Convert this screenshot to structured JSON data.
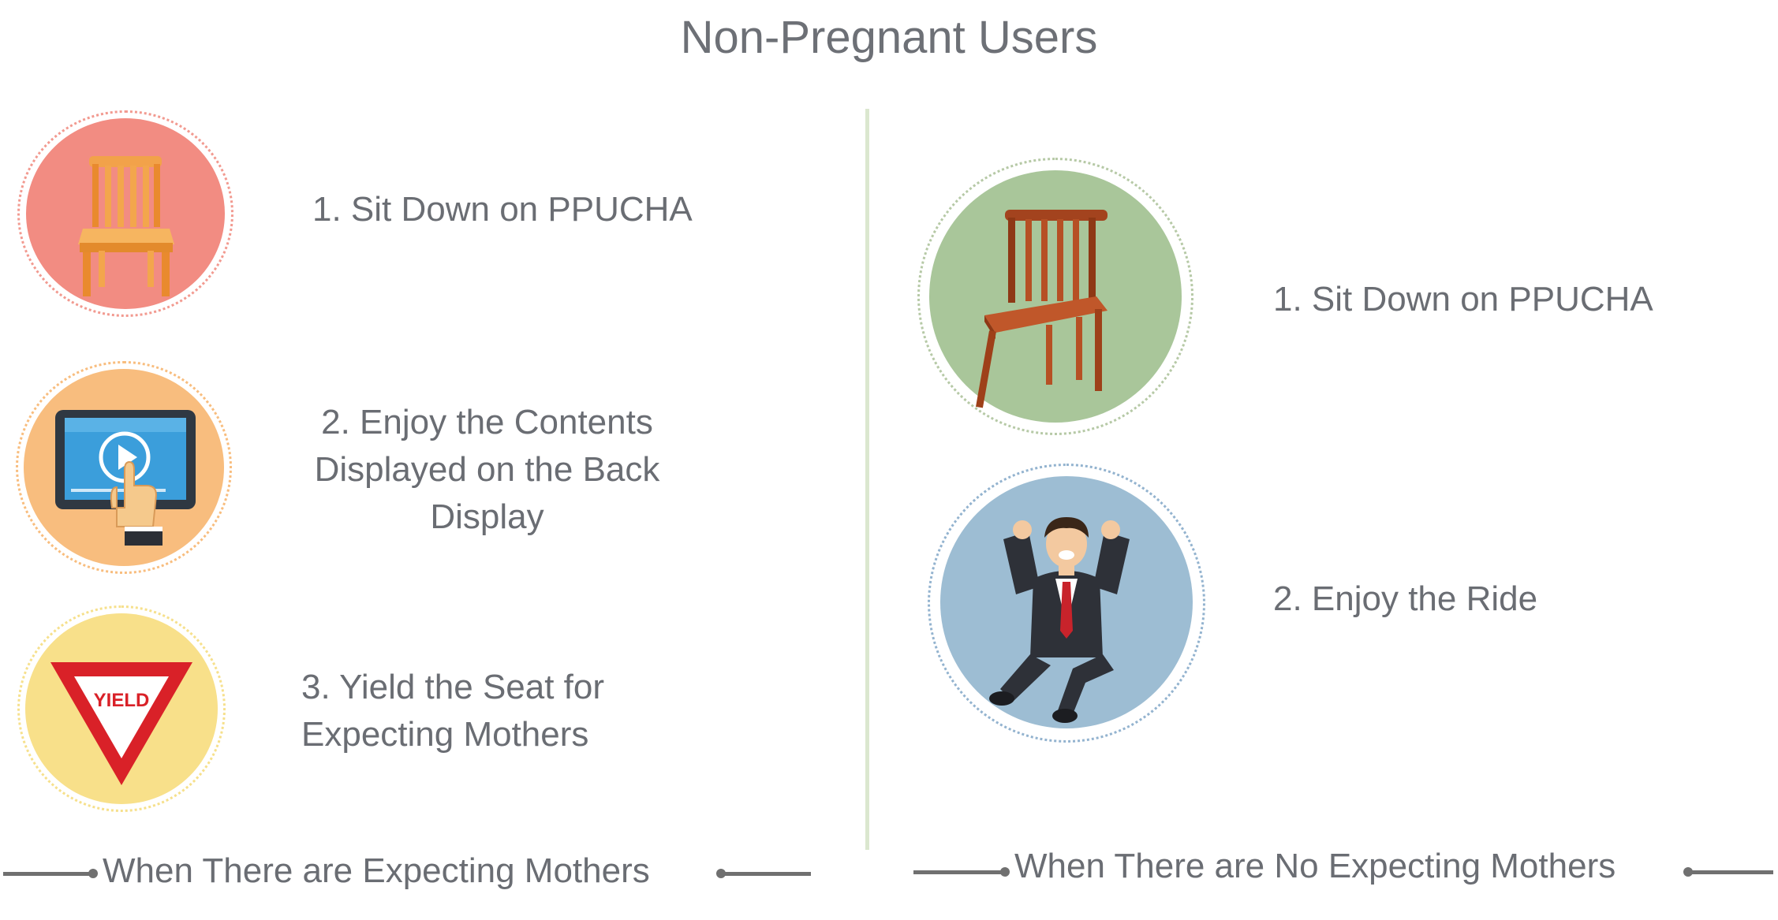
{
  "title": "Non-Pregnant Users",
  "left_panel": {
    "steps": [
      {
        "text": "1. Sit Down on PPUCHA",
        "icon": "wooden-chair-icon",
        "color": "#f28c82"
      },
      {
        "text_lines": [
          "2. Enjoy the Contents",
          "Displayed on the Back",
          "Display"
        ],
        "icon": "tablet-touch-icon",
        "color": "#f8bd7e"
      },
      {
        "text_lines": [
          "3. Yield the Seat for",
          "Expecting Mothers"
        ],
        "icon": "yield-sign-icon",
        "color": "#f8e08a",
        "sign_text": "YIELD"
      }
    ],
    "footer": "When There are Expecting Mothers"
  },
  "right_panel": {
    "steps": [
      {
        "text": "1. Sit Down on PPUCHA",
        "icon": "wooden-chair-icon",
        "color": "#a9c69a"
      },
      {
        "text": "2. Enjoy the Ride",
        "icon": "jumping-man-icon",
        "color": "#9dbdd3"
      }
    ],
    "footer": "When There are No Expecting Mothers"
  }
}
